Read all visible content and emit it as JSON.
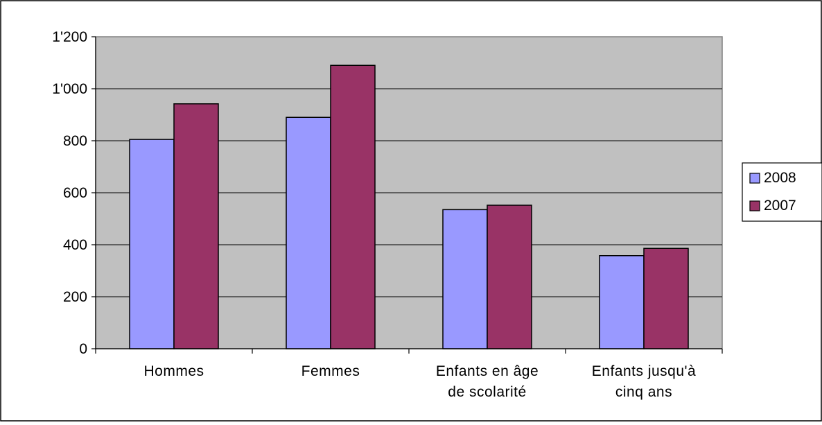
{
  "chart_data": {
    "type": "bar",
    "title": "",
    "xlabel": "",
    "ylabel": "",
    "categories": [
      [
        "Hommes"
      ],
      [
        "Femmes"
      ],
      [
        "Enfants en âge",
        "de scolarité"
      ],
      [
        "Enfants jusqu'à",
        "cinq ans"
      ]
    ],
    "series": [
      {
        "name": "2008",
        "color": "#9999ff",
        "values": [
          805,
          890,
          535,
          358
        ]
      },
      {
        "name": "2007",
        "color": "#993366",
        "values": [
          942,
          1090,
          552,
          386
        ]
      }
    ],
    "ylim": [
      0,
      1200
    ],
    "yticks": [
      {
        "value": 0,
        "label": "0"
      },
      {
        "value": 200,
        "label": "200"
      },
      {
        "value": 400,
        "label": "400"
      },
      {
        "value": 600,
        "label": "600"
      },
      {
        "value": 800,
        "label": "800"
      },
      {
        "value": 1000,
        "label": "1'000"
      },
      {
        "value": 1200,
        "label": "1'200"
      }
    ],
    "grid": true,
    "plot_background": "#c0c0c0",
    "legend_position": "right"
  }
}
